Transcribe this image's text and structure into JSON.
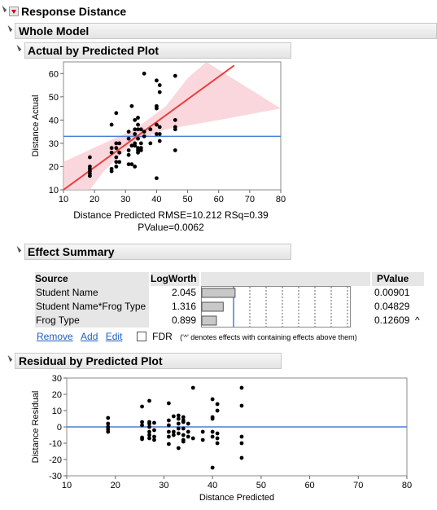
{
  "report": {
    "title": "Response Distance",
    "section": "Whole Model"
  },
  "actual_plot": {
    "title": "Actual by Predicted Plot",
    "ylabel": "Distance Actual",
    "caption_line1": "Distance Predicted RMSE=10.212 RSq=0.39",
    "caption_line2": "PValue=0.0062"
  },
  "effect_summary": {
    "title": "Effect Summary",
    "columns": {
      "source": "Source",
      "logworth": "LogWorth",
      "pvalue": "PValue"
    },
    "rows": [
      {
        "source": "Student Name",
        "logworth": "2.045",
        "pvalue": "0.00901",
        "flag": "",
        "bar": 2.045
      },
      {
        "source": "Student Name*Frog Type",
        "logworth": "1.316",
        "pvalue": "0.04829",
        "flag": "",
        "bar": 1.316
      },
      {
        "source": "Frog Type",
        "logworth": "0.899",
        "pvalue": "0.12609",
        "flag": "^",
        "bar": 0.899
      }
    ],
    "actions": {
      "remove": "Remove",
      "add": "Add",
      "edit": "Edit"
    },
    "fdr_label": "FDR",
    "footnote": "('^' denotes effects with containing effects above them)"
  },
  "residual_plot": {
    "title": "Residual by Predicted Plot",
    "ylabel": "Distance Residual",
    "xlabel": "Distance Predicted"
  },
  "colors": {
    "fit_line": "#e8413f",
    "confidence_band": "#f8c9d0",
    "mean_line": "#4a7fd4",
    "points": "#000000"
  },
  "chart_data": [
    {
      "type": "scatter",
      "name": "Actual by Predicted Plot",
      "xlabel": "Distance Predicted",
      "ylabel": "Distance Actual",
      "xlim": [
        10,
        80
      ],
      "ylim": [
        10,
        65
      ],
      "xticks": [
        10,
        20,
        30,
        40,
        50,
        60,
        70,
        80
      ],
      "yticks": [
        10,
        20,
        30,
        40,
        50,
        60
      ],
      "mean_line_y": 33,
      "fit_line": [
        [
          10,
          10
        ],
        [
          65,
          63.5
        ]
      ],
      "band_upper": [
        [
          10,
          22
        ],
        [
          23,
          30
        ],
        [
          33,
          36
        ],
        [
          43,
          46
        ],
        [
          50,
          58
        ],
        [
          56,
          65
        ]
      ],
      "band_lower": [
        [
          10,
          -5
        ],
        [
          23,
          18
        ],
        [
          33,
          31
        ],
        [
          43,
          36
        ],
        [
          60,
          40
        ],
        [
          80,
          45
        ]
      ],
      "points": [
        [
          18.5,
          24
        ],
        [
          18.5,
          20
        ],
        [
          18.5,
          18
        ],
        [
          18.5,
          17
        ],
        [
          18.5,
          16
        ],
        [
          18.5,
          19
        ],
        [
          25.5,
          38
        ],
        [
          25.5,
          28
        ],
        [
          25.5,
          26
        ],
        [
          25.5,
          19
        ],
        [
          25.5,
          18
        ],
        [
          27,
          43
        ],
        [
          27,
          30
        ],
        [
          27,
          28
        ],
        [
          27,
          24
        ],
        [
          27,
          22
        ],
        [
          27,
          20
        ],
        [
          28,
          30
        ],
        [
          28,
          26
        ],
        [
          28,
          22
        ],
        [
          31,
          35
        ],
        [
          31,
          32
        ],
        [
          31,
          27
        ],
        [
          31,
          25
        ],
        [
          31,
          21
        ],
        [
          32,
          46
        ],
        [
          32,
          29
        ],
        [
          32,
          21
        ],
        [
          33,
          40
        ],
        [
          33,
          36
        ],
        [
          33,
          34
        ],
        [
          33,
          30
        ],
        [
          33,
          29
        ],
        [
          33,
          20
        ],
        [
          34,
          41
        ],
        [
          34,
          38
        ],
        [
          34,
          36
        ],
        [
          34,
          32
        ],
        [
          34,
          28
        ],
        [
          34,
          27
        ],
        [
          34,
          26
        ],
        [
          35,
          36
        ],
        [
          35,
          30
        ],
        [
          35,
          28
        ],
        [
          35,
          27
        ],
        [
          36,
          60
        ],
        [
          36,
          35
        ],
        [
          36,
          33
        ],
        [
          38,
          36
        ],
        [
          38,
          30
        ],
        [
          40,
          57
        ],
        [
          40,
          46
        ],
        [
          40,
          45
        ],
        [
          40,
          38
        ],
        [
          40,
          34
        ],
        [
          40,
          15
        ],
        [
          41,
          55
        ],
        [
          41,
          52
        ],
        [
          41,
          37
        ],
        [
          41,
          34
        ],
        [
          41,
          31
        ],
        [
          46,
          59
        ],
        [
          46,
          40
        ],
        [
          46,
          37
        ],
        [
          46,
          36
        ],
        [
          46,
          27
        ]
      ]
    },
    {
      "type": "scatter",
      "name": "Residual by Predicted Plot",
      "xlabel": "Distance Predicted",
      "ylabel": "Distance Residual",
      "xlim": [
        10,
        80
      ],
      "ylim": [
        -30,
        30
      ],
      "xticks": [
        10,
        20,
        30,
        40,
        50,
        60,
        70,
        80
      ],
      "yticks": [
        -30,
        -20,
        -10,
        0,
        10,
        20,
        30
      ],
      "zero_line_y": 0,
      "points": [
        [
          18.5,
          5.5
        ],
        [
          18.5,
          2
        ],
        [
          18.5,
          0
        ],
        [
          18.5,
          -1.5
        ],
        [
          18.5,
          -3
        ],
        [
          25.5,
          12.5
        ],
        [
          25.5,
          3
        ],
        [
          25.5,
          1
        ],
        [
          25.5,
          -6.5
        ],
        [
          25.5,
          -7.5
        ],
        [
          27,
          16
        ],
        [
          27,
          3
        ],
        [
          27,
          2
        ],
        [
          27,
          0
        ],
        [
          27,
          -3
        ],
        [
          27,
          -5
        ],
        [
          27,
          -7
        ],
        [
          28,
          2.5
        ],
        [
          28,
          -2
        ],
        [
          28,
          -6
        ],
        [
          28,
          -8
        ],
        [
          31,
          14.5
        ],
        [
          31,
          4
        ],
        [
          31,
          1
        ],
        [
          31,
          -3
        ],
        [
          31,
          -6
        ],
        [
          31,
          -10.5
        ],
        [
          32,
          6.5
        ],
        [
          32,
          -3
        ],
        [
          32,
          -5
        ],
        [
          33,
          7
        ],
        [
          33,
          5
        ],
        [
          33,
          2
        ],
        [
          33,
          -1
        ],
        [
          33,
          -4
        ],
        [
          33,
          -13
        ],
        [
          34,
          6
        ],
        [
          34,
          4
        ],
        [
          34,
          3
        ],
        [
          34,
          -1
        ],
        [
          34,
          -5
        ],
        [
          34,
          -8
        ],
        [
          34,
          -9
        ],
        [
          35,
          2
        ],
        [
          35,
          -3
        ],
        [
          35,
          -6
        ],
        [
          36,
          24
        ],
        [
          36,
          -7
        ],
        [
          38,
          -3
        ],
        [
          38,
          -8
        ],
        [
          40,
          17
        ],
        [
          40,
          6
        ],
        [
          40,
          5
        ],
        [
          40,
          -3
        ],
        [
          40,
          -6
        ],
        [
          40,
          -25
        ],
        [
          41,
          14
        ],
        [
          41,
          10
        ],
        [
          41,
          -4
        ],
        [
          41,
          -7
        ],
        [
          41,
          -10
        ],
        [
          46,
          24
        ],
        [
          46,
          13
        ],
        [
          46,
          -6
        ],
        [
          46,
          -10
        ],
        [
          46,
          -19
        ]
      ]
    }
  ]
}
